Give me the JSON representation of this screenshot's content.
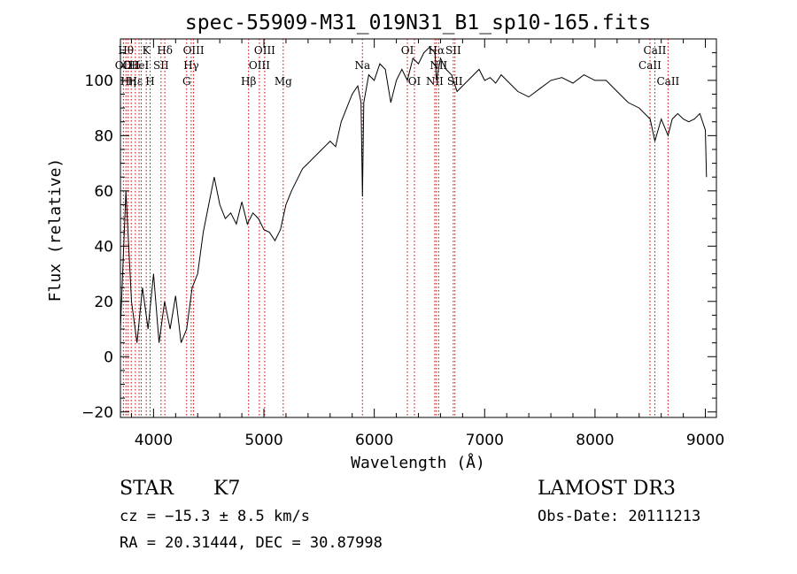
{
  "chart_data": {
    "type": "line",
    "title": "spec-55909-M31_019N31_B1_sp10-165.fits",
    "xlabel": "Wavelength (Å)",
    "ylabel": "Flux (relative)",
    "xlim": [
      3700,
      9100
    ],
    "ylim": [
      -22,
      115
    ],
    "xticks": [
      4000,
      5000,
      6000,
      7000,
      8000,
      9000
    ],
    "yticks": [
      -20,
      0,
      20,
      40,
      60,
      80,
      100
    ],
    "series": [
      {
        "name": "spectrum",
        "x": [
          3700,
          3750,
          3800,
          3850,
          3900,
          3950,
          4000,
          4050,
          4100,
          4150,
          4200,
          4250,
          4300,
          4350,
          4400,
          4450,
          4500,
          4550,
          4600,
          4650,
          4700,
          4750,
          4800,
          4850,
          4900,
          4950,
          5000,
          5050,
          5100,
          5150,
          5200,
          5250,
          5300,
          5350,
          5400,
          5450,
          5500,
          5550,
          5600,
          5650,
          5700,
          5750,
          5800,
          5850,
          5880,
          5893,
          5905,
          5950,
          6000,
          6050,
          6100,
          6150,
          6200,
          6250,
          6300,
          6350,
          6400,
          6450,
          6500,
          6550,
          6564,
          6600,
          6650,
          6700,
          6750,
          6800,
          6850,
          6900,
          6950,
          7000,
          7050,
          7100,
          7150,
          7200,
          7300,
          7400,
          7500,
          7600,
          7700,
          7800,
          7900,
          8000,
          8100,
          8200,
          8300,
          8400,
          8450,
          8500,
          8542,
          8600,
          8662,
          8700,
          8750,
          8800,
          8850,
          8900,
          8950,
          9000,
          9010
        ],
        "y": [
          10,
          60,
          20,
          5,
          25,
          10,
          30,
          5,
          20,
          10,
          22,
          5,
          10,
          25,
          30,
          45,
          55,
          65,
          55,
          50,
          52,
          48,
          56,
          48,
          52,
          50,
          46,
          45,
          42,
          46,
          55,
          60,
          64,
          68,
          70,
          72,
          74,
          76,
          78,
          76,
          85,
          90,
          95,
          98,
          92,
          58,
          92,
          102,
          100,
          106,
          104,
          92,
          100,
          104,
          100,
          108,
          106,
          110,
          112,
          110,
          100,
          108,
          104,
          102,
          96,
          98,
          100,
          102,
          104,
          100,
          101,
          99,
          102,
          100,
          96,
          94,
          97,
          100,
          101,
          99,
          102,
          100,
          100,
          96,
          92,
          90,
          88,
          86,
          78,
          86,
          80,
          86,
          88,
          86,
          85,
          86,
          88,
          82,
          65
        ]
      }
    ],
    "lines": [
      {
        "w": 3727,
        "label": "OII",
        "row": 2
      },
      {
        "w": 3750,
        "label": "Hθ",
        "row": 1
      },
      {
        "w": 3770,
        "label": "Hη",
        "row": 3
      },
      {
        "w": 3798,
        "label": "OII",
        "row": 2
      },
      {
        "w": 3835,
        "label": "Hε",
        "row": 3
      },
      {
        "w": 3869,
        "label": "HeI",
        "row": 2
      },
      {
        "w": 3889,
        "label": "",
        "row": 0
      },
      {
        "w": 3934,
        "label": "K",
        "row": 1
      },
      {
        "w": 3969,
        "label": "H",
        "row": 3
      },
      {
        "w": 4068,
        "label": "SII",
        "row": 2
      },
      {
        "w": 4102,
        "label": "Hδ",
        "row": 1
      },
      {
        "w": 4300,
        "label": "G",
        "row": 3
      },
      {
        "w": 4341,
        "label": "Hγ",
        "row": 2
      },
      {
        "w": 4363,
        "label": "OIII",
        "row": 1
      },
      {
        "w": 4861,
        "label": "Hβ",
        "row": 3
      },
      {
        "w": 4959,
        "label": "OIII",
        "row": 2
      },
      {
        "w": 5007,
        "label": "OIII",
        "row": 1
      },
      {
        "w": 5175,
        "label": "Mg",
        "row": 3
      },
      {
        "w": 5893,
        "label": "Na",
        "row": 2
      },
      {
        "w": 6300,
        "label": "OI",
        "row": 1
      },
      {
        "w": 6364,
        "label": "OI",
        "row": 3
      },
      {
        "w": 6548,
        "label": "NII",
        "row": 3
      },
      {
        "w": 6563,
        "label": "Hα",
        "row": 1
      },
      {
        "w": 6583,
        "label": "NII",
        "row": 2
      },
      {
        "w": 6716,
        "label": "SII",
        "row": 1
      },
      {
        "w": 6731,
        "label": "SII",
        "row": 3
      },
      {
        "w": 8498,
        "label": "CaII",
        "row": 2
      },
      {
        "w": 8542,
        "label": "CaII",
        "row": 1
      },
      {
        "w": 8662,
        "label": "CaII",
        "row": 3
      }
    ]
  },
  "info": {
    "object_class": "STAR",
    "subclass": "K7",
    "survey": "LAMOST DR3",
    "cz": "cz = −15.3 ± 8.5 km/s",
    "obs_date": "Obs-Date: 20111213",
    "coords": "RA =  20.31444, DEC =  30.87998"
  }
}
